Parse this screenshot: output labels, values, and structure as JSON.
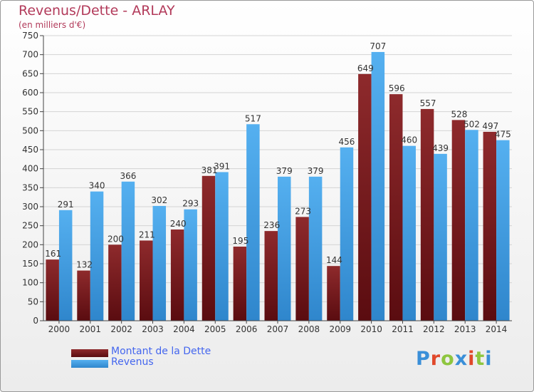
{
  "title": "Revenus/Dette - ARLAY",
  "subtitle": "(en milliers d'€)",
  "brand": {
    "text": "Proxiti",
    "letter_colors": [
      "#3a8fd8",
      "#e0482a",
      "#8ec63f",
      "#3a8fd8",
      "#e0482a",
      "#8ec63f",
      "#3a8fd8"
    ]
  },
  "colors": {
    "dette": "#7a1a1e",
    "revenus": "#3d9be0",
    "title": "#b23a5a",
    "legend_text": "#4466ee"
  },
  "chart_data": {
    "type": "bar",
    "title": "Revenus/Dette - ARLAY",
    "subtitle": "(en milliers d'€)",
    "categories": [
      "2000",
      "2001",
      "2002",
      "2003",
      "2004",
      "2005",
      "2006",
      "2007",
      "2008",
      "2009",
      "2010",
      "2011",
      "2012",
      "2013",
      "2014"
    ],
    "series": [
      {
        "name": "Montant de la Dette",
        "values": [
          161,
          132,
          200,
          211,
          240,
          381,
          195,
          236,
          273,
          144,
          649,
          596,
          557,
          528,
          497
        ]
      },
      {
        "name": "Revenus",
        "values": [
          291,
          340,
          366,
          302,
          293,
          391,
          517,
          379,
          379,
          456,
          707,
          460,
          439,
          502,
          475
        ]
      }
    ],
    "ylim": [
      0,
      750
    ],
    "yticks": [
      0,
      50,
      100,
      150,
      200,
      250,
      300,
      350,
      400,
      450,
      500,
      550,
      600,
      650,
      700,
      750
    ],
    "grid": true,
    "legend_position": "bottom-left"
  }
}
